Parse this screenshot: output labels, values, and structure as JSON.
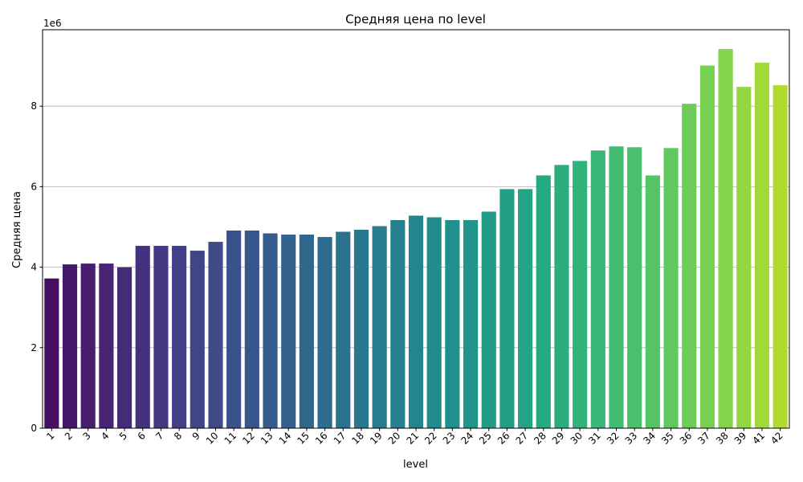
{
  "chart_data": {
    "type": "bar",
    "title": "Средняя цена по level",
    "xlabel": "level",
    "ylabel": "Средняя цена",
    "y_offset_label": "1e6",
    "ylim": [
      0,
      9900000
    ],
    "yticks": [
      0,
      2000000,
      4000000,
      6000000,
      8000000
    ],
    "ytick_labels": [
      "0",
      "2",
      "4",
      "6",
      "8"
    ],
    "grid": "y",
    "legend": "none",
    "colormap": "viridis",
    "categories": [
      "1",
      "2",
      "3",
      "4",
      "5",
      "6",
      "7",
      "8",
      "9",
      "10",
      "11",
      "12",
      "13",
      "14",
      "15",
      "16",
      "17",
      "18",
      "19",
      "20",
      "21",
      "22",
      "23",
      "24",
      "25",
      "26",
      "27",
      "28",
      "29",
      "30",
      "31",
      "32",
      "33",
      "34",
      "35",
      "36",
      "37",
      "38",
      "39",
      "41",
      "42"
    ],
    "values": [
      3720000,
      4070000,
      4090000,
      4090000,
      4000000,
      4530000,
      4530000,
      4530000,
      4410000,
      4630000,
      4910000,
      4910000,
      4840000,
      4810000,
      4810000,
      4750000,
      4880000,
      4930000,
      5020000,
      5170000,
      5280000,
      5240000,
      5170000,
      5170000,
      5380000,
      5940000,
      5940000,
      6280000,
      6540000,
      6640000,
      6900000,
      7000000,
      6980000,
      6280000,
      6960000,
      8060000,
      9010000,
      9420000,
      8480000,
      9080000,
      8520000
    ]
  }
}
